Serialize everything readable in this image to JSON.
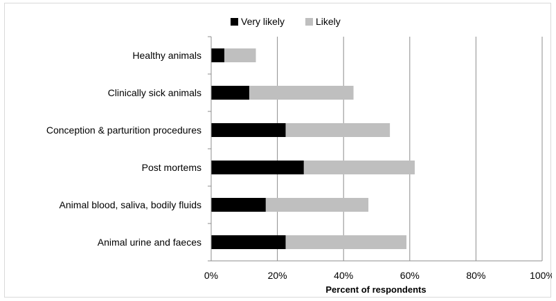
{
  "chart_data": {
    "type": "bar",
    "orientation": "horizontal",
    "stacked": true,
    "categories": [
      "Healthy animals",
      "Clinically sick animals",
      "Conception & parturition procedures",
      "Post mortems",
      "Animal blood, saliva, bodily fluids",
      "Animal urine and faeces"
    ],
    "series": [
      {
        "name": "Very likely",
        "color": "#000000",
        "values": [
          4,
          11.5,
          22.5,
          28,
          16.5,
          22.5
        ]
      },
      {
        "name": "Likely",
        "color": "#bfbfbf",
        "values": [
          9.5,
          31.5,
          31.5,
          33.5,
          31,
          36.5
        ]
      }
    ],
    "xlabel": "Percent of respondents",
    "ylabel": "",
    "xlim": [
      0,
      100
    ],
    "x_ticks": [
      "0%",
      "20%",
      "40%",
      "60%",
      "80%",
      "100%"
    ],
    "grid": "vertical",
    "legend_position": "top"
  }
}
